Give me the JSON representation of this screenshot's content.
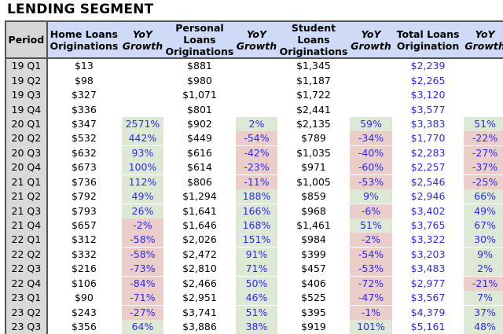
{
  "title": "LENDING SEGMENT",
  "headers": {
    "period": "Period",
    "home": [
      "Home Loans",
      "Originations"
    ],
    "home_yoy": [
      "YoY",
      "Growth"
    ],
    "personal": [
      "Personal",
      "Loans",
      "Originations"
    ],
    "personal_yoy": [
      "YoY",
      "Growth"
    ],
    "student": [
      "Student",
      "Loans",
      "Originations"
    ],
    "student_yoy": [
      "YoY",
      "Growth"
    ],
    "total": [
      "Total Loans",
      "Origination"
    ],
    "total_yoy": [
      "YoY",
      "Growth"
    ]
  },
  "colors": {
    "header_bg": "#cfdbf6",
    "period_bg": "#d9d9d9",
    "positive_bg": "#dde9d4",
    "negative_bg": "#ebcdca",
    "blue_text": "#2b2bf0"
  },
  "rows": [
    [
      "19 Q1",
      "$13",
      "",
      "$881",
      "",
      "$1,345",
      "",
      "$2,239",
      ""
    ],
    [
      "19 Q2",
      "$98",
      "",
      "$980",
      "",
      "$1,187",
      "",
      "$2,265",
      ""
    ],
    [
      "19 Q3",
      "$327",
      "",
      "$1,071",
      "",
      "$1,722",
      "",
      "$3,120",
      ""
    ],
    [
      "19 Q4",
      "$336",
      "",
      "$801",
      "",
      "$2,441",
      "",
      "$3,577",
      ""
    ],
    [
      "20 Q1",
      "$347",
      "2571%",
      "$902",
      "2%",
      "$2,135",
      "59%",
      "$3,383",
      "51%"
    ],
    [
      "20 Q2",
      "$532",
      "442%",
      "$449",
      "-54%",
      "$789",
      "-34%",
      "$1,770",
      "-22%"
    ],
    [
      "20 Q3",
      "$632",
      "93%",
      "$616",
      "-42%",
      "$1,035",
      "-40%",
      "$2,283",
      "-27%"
    ],
    [
      "20 Q4",
      "$673",
      "100%",
      "$614",
      "-23%",
      "$971",
      "-60%",
      "$2,257",
      "-37%"
    ],
    [
      "21 Q1",
      "$736",
      "112%",
      "$806",
      "-11%",
      "$1,005",
      "-53%",
      "$2,546",
      "-25%"
    ],
    [
      "21 Q2",
      "$792",
      "49%",
      "$1,294",
      "188%",
      "$859",
      "9%",
      "$2,946",
      "66%"
    ],
    [
      "21 Q3",
      "$793",
      "26%",
      "$1,641",
      "166%",
      "$968",
      "-6%",
      "$3,402",
      "49%"
    ],
    [
      "21 Q4",
      "$657",
      "-2%",
      "$1,646",
      "168%",
      "$1,461",
      "51%",
      "$3,765",
      "67%"
    ],
    [
      "22 Q1",
      "$312",
      "-58%",
      "$2,026",
      "151%",
      "$984",
      "-2%",
      "$3,322",
      "30%"
    ],
    [
      "22 Q2",
      "$332",
      "-58%",
      "$2,472",
      "91%",
      "$399",
      "-54%",
      "$3,203",
      "9%"
    ],
    [
      "22 Q3",
      "$216",
      "-73%",
      "$2,810",
      "71%",
      "$457",
      "-53%",
      "$3,483",
      "2%"
    ],
    [
      "22 Q4",
      "$106",
      "-84%",
      "$2,466",
      "50%",
      "$406",
      "-72%",
      "$2,977",
      "-21%"
    ],
    [
      "23 Q1",
      "$90",
      "-71%",
      "$2,951",
      "46%",
      "$525",
      "-47%",
      "$3,567",
      "7%"
    ],
    [
      "23 Q2",
      "$243",
      "-27%",
      "$3,741",
      "51%",
      "$395",
      "-1%",
      "$4,379",
      "37%"
    ],
    [
      "23 Q3",
      "$356",
      "64%",
      "$3,886",
      "38%",
      "$919",
      "101%",
      "$5,161",
      "48%"
    ]
  ]
}
